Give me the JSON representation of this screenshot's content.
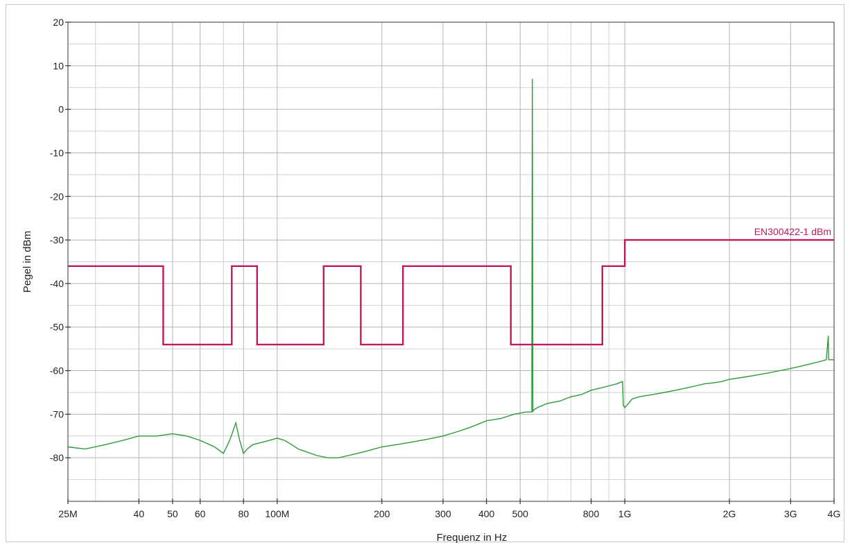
{
  "chart_data": {
    "type": "line",
    "title": "",
    "xlabel": "Frequenz in Hz",
    "ylabel": "Pegel in dBm",
    "xscale": "log",
    "xlim": [
      25000000,
      4000000000
    ],
    "ylim": [
      -90,
      20
    ],
    "grid": true,
    "x_ticks": [
      {
        "value": 25000000,
        "label": "25M"
      },
      {
        "value": 40000000,
        "label": "40"
      },
      {
        "value": 50000000,
        "label": "50"
      },
      {
        "value": 60000000,
        "label": "60"
      },
      {
        "value": 80000000,
        "label": "80"
      },
      {
        "value": 100000000,
        "label": "100M"
      },
      {
        "value": 200000000,
        "label": "200"
      },
      {
        "value": 300000000,
        "label": "300"
      },
      {
        "value": 400000000,
        "label": "400"
      },
      {
        "value": 500000000,
        "label": "500"
      },
      {
        "value": 800000000,
        "label": "800"
      },
      {
        "value": 1000000000,
        "label": "1G"
      },
      {
        "value": 2000000000,
        "label": "2G"
      },
      {
        "value": 3000000000,
        "label": "3G"
      },
      {
        "value": 4000000000,
        "label": "4G"
      }
    ],
    "y_ticks": [
      {
        "value": 20,
        "label": "20"
      },
      {
        "value": 10,
        "label": "10"
      },
      {
        "value": 0,
        "label": "0"
      },
      {
        "value": -10,
        "label": "-10"
      },
      {
        "value": -20,
        "label": "-20"
      },
      {
        "value": -30,
        "label": "-30"
      },
      {
        "value": -40,
        "label": "-40"
      },
      {
        "value": -50,
        "label": "-50"
      },
      {
        "value": -60,
        "label": "-60"
      },
      {
        "value": -70,
        "label": "-70"
      },
      {
        "value": -80,
        "label": "-80"
      }
    ],
    "series": [
      {
        "name": "EN300422-1 dBm",
        "color": "#c2185b",
        "style": "step",
        "x": [
          25000000,
          47000000,
          47000000,
          74000000,
          74000000,
          87500000,
          87500000,
          136000000,
          136000000,
          174000000,
          174000000,
          230000000,
          230000000,
          470000000,
          470000000,
          862000000,
          862000000,
          1000000000,
          1000000000,
          4000000000
        ],
        "y": [
          -36,
          -36,
          -54,
          -54,
          -36,
          -36,
          -54,
          -54,
          -36,
          -36,
          -54,
          -54,
          -36,
          -36,
          -54,
          -54,
          -36,
          -36,
          -30,
          -30
        ]
      },
      {
        "name": "",
        "color": "#2e9a3a",
        "style": "line",
        "x": [
          25000000,
          28000000,
          32000000,
          36000000,
          40000000,
          45000000,
          50000000,
          55000000,
          60000000,
          66000000,
          70000000,
          73000000,
          76000000,
          78000000,
          80000000,
          82000000,
          85000000,
          90000000,
          95000000,
          100000000,
          105000000,
          110000000,
          115000000,
          120000000,
          130000000,
          140000000,
          150000000,
          160000000,
          170000000,
          180000000,
          190000000,
          200000000,
          220000000,
          240000000,
          260000000,
          280000000,
          300000000,
          330000000,
          360000000,
          400000000,
          440000000,
          480000000,
          520000000,
          540000000,
          542000000,
          544000000,
          546000000,
          548000000,
          560000000,
          600000000,
          650000000,
          700000000,
          750000000,
          800000000,
          850000000,
          900000000,
          950000000,
          985000000,
          990000000,
          1000000000,
          1050000000,
          1100000000,
          1200000000,
          1300000000,
          1400000000,
          1500000000,
          1600000000,
          1700000000,
          1800000000,
          1900000000,
          2000000000,
          2200000000,
          2400000000,
          2600000000,
          2800000000,
          3000000000,
          3200000000,
          3400000000,
          3600000000,
          3800000000,
          3850000000,
          3860000000,
          3870000000,
          3900000000,
          4000000000
        ],
        "y": [
          -77.5,
          -78,
          -77,
          -76,
          -75,
          -75,
          -74.5,
          -75,
          -76,
          -77.5,
          -79,
          -76,
          -72,
          -76,
          -79,
          -78,
          -77,
          -76.5,
          -76,
          -75.5,
          -76,
          -77,
          -78,
          -78.5,
          -79.5,
          -80,
          -80,
          -79.5,
          -79,
          -78.5,
          -78,
          -77.5,
          -77,
          -76.5,
          -76,
          -75.5,
          -75,
          -74,
          -73,
          -71.5,
          -71,
          -70,
          -69.5,
          -69.5,
          7,
          -69.5,
          -69,
          -69,
          -68.5,
          -67.5,
          -67,
          -66,
          -65.5,
          -64.5,
          -64,
          -63.5,
          -63,
          -62.5,
          -68,
          -68.5,
          -66.5,
          -66,
          -65.5,
          -65,
          -64.5,
          -64,
          -63.5,
          -63,
          -62.8,
          -62.5,
          -62,
          -61.5,
          -61,
          -60.5,
          -60,
          -59.5,
          -59,
          -58.5,
          -58,
          -57.5,
          -52,
          -57.5,
          -57.5,
          -57.5,
          -57.5
        ]
      }
    ]
  }
}
